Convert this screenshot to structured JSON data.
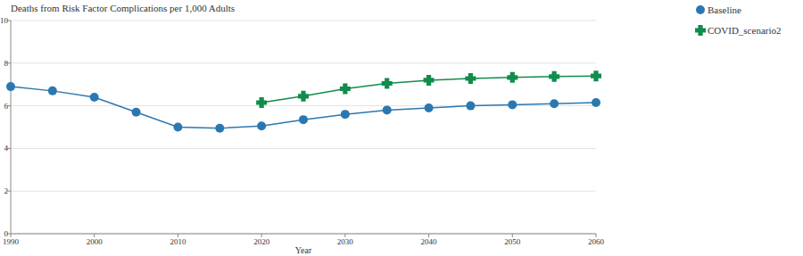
{
  "chart_data": {
    "type": "line",
    "title": "Deaths from Risk Factor Complications per 1,000 Adults",
    "x_label": "Year",
    "x": [
      1990,
      1995,
      2000,
      2005,
      2010,
      2015,
      2020,
      2025,
      2030,
      2035,
      2040,
      2045,
      2050,
      2055,
      2060
    ],
    "series": [
      {
        "name": "Baseline",
        "color": "#2b78b0",
        "marker": "circle",
        "values": [
          6.9,
          6.7,
          6.4,
          5.7,
          5.0,
          4.95,
          5.05,
          5.35,
          5.6,
          5.8,
          5.9,
          6.0,
          6.05,
          6.1,
          6.15
        ]
      },
      {
        "name": "COVID_scenario2",
        "color": "#118c4c",
        "marker": "cross",
        "values": [
          null,
          null,
          null,
          null,
          null,
          null,
          6.15,
          6.45,
          6.8,
          7.05,
          7.2,
          7.28,
          7.33,
          7.37,
          7.4
        ]
      }
    ],
    "xlim": [
      1990,
      2060
    ],
    "xticks": [
      1990,
      2000,
      2010,
      2020,
      2030,
      2040,
      2050,
      2060
    ],
    "ylim": [
      0,
      10
    ],
    "yticks": [
      0,
      2,
      4,
      6,
      8,
      10
    ],
    "grid": true,
    "legend": "upper right"
  }
}
